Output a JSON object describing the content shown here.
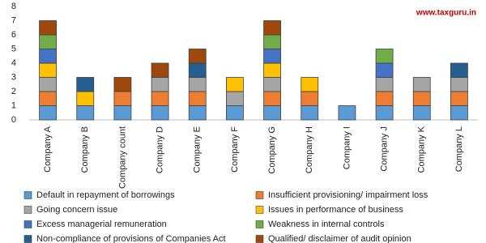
{
  "chart_data": {
    "type": "stacked-bar",
    "annotation": "www.taxguru.in",
    "categories": [
      "Company A",
      "Company B",
      "Company count",
      "Company D",
      "Company E",
      "Company F",
      "Company G",
      "Company H",
      "Company I",
      "Company J",
      "Company K",
      "Company L"
    ],
    "series": [
      {
        "name": "Default in repayment of borrowings",
        "color": "#5b9bd5",
        "values": [
          1,
          1,
          1,
          1,
          1,
          1,
          1,
          1,
          1,
          1,
          1,
          1
        ]
      },
      {
        "name": "Insufficient provisioning/  impairment loss",
        "color": "#ed7d31",
        "values": [
          1,
          0,
          1,
          1,
          1,
          0,
          1,
          1,
          0,
          1,
          1,
          1
        ]
      },
      {
        "name": "Going concern issue",
        "color": "#a5a5a5",
        "values": [
          1,
          0,
          0,
          1,
          1,
          1,
          1,
          0,
          0,
          1,
          1,
          1
        ]
      },
      {
        "name": "Issues in performance of business",
        "color": "#ffc000",
        "values": [
          1,
          1,
          0,
          0,
          0,
          1,
          1,
          1,
          0,
          0,
          0,
          0
        ]
      },
      {
        "name": "Excess managerial remuneration",
        "color": "#4472c4",
        "values": [
          1,
          0,
          0,
          0,
          0,
          0,
          1,
          0,
          0,
          1,
          0,
          0
        ]
      },
      {
        "name": "Weakness in internal controls",
        "color": "#70ad47",
        "values": [
          1,
          0,
          0,
          0,
          0,
          0,
          1,
          0,
          0,
          1,
          0,
          0
        ]
      },
      {
        "name": "Non-compliance of provisions of Companies Act",
        "color": "#255e91",
        "values": [
          0,
          1,
          0,
          0,
          1,
          0,
          0,
          0,
          0,
          0,
          0,
          1
        ]
      },
      {
        "name": "Qualified/ disclaimer of audit opinion",
        "color": "#9e480e",
        "values": [
          1,
          0,
          1,
          1,
          1,
          0,
          1,
          0,
          0,
          0,
          0,
          0
        ]
      }
    ],
    "ylim": [
      0,
      8
    ],
    "yticks": [
      0,
      1,
      2,
      3,
      4,
      5,
      6,
      7,
      8
    ]
  }
}
